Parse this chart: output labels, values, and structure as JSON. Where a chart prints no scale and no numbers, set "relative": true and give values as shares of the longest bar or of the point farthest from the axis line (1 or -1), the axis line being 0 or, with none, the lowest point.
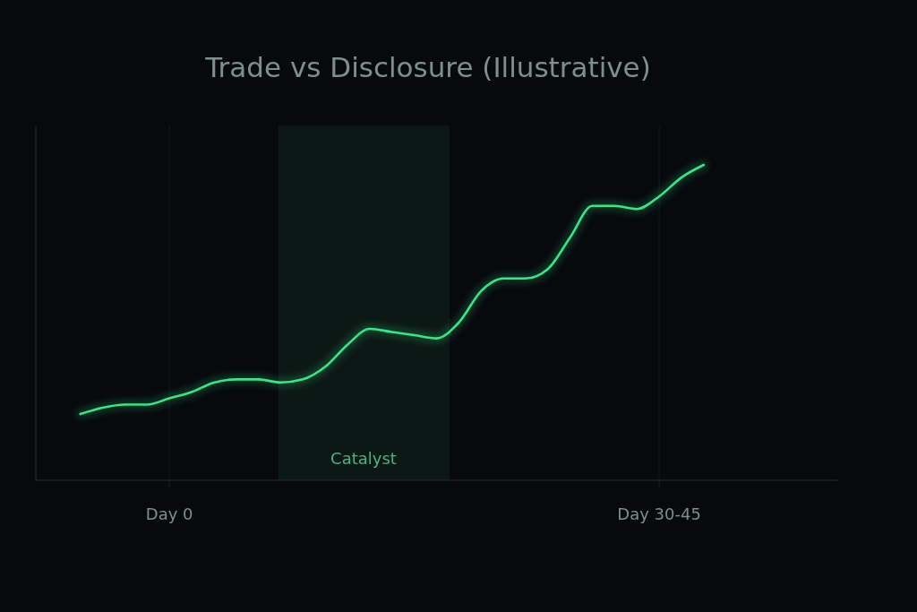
{
  "chart_data": {
    "type": "line",
    "title": "Trade vs Disclosure (Illustrative)",
    "relative": true,
    "categories": [
      null,
      null,
      null,
      null,
      null,
      null,
      "Day 0",
      null,
      null,
      null,
      null,
      null,
      null,
      null,
      null,
      null,
      null,
      null,
      null,
      null,
      null,
      null,
      null,
      null,
      null,
      null,
      null,
      null,
      "Day 30-45",
      null,
      null,
      null,
      null,
      null,
      null,
      null,
      null
    ],
    "grid": "x",
    "marker": "none",
    "line_style": "solid",
    "annotations": [
      "Catalyst"
    ],
    "series": [
      {
        "color": "#33e887",
        "values": [
          null,
          null,
          0.21,
          0.23,
          0.24,
          0.24,
          0.26,
          0.28,
          0.31,
          0.32,
          0.32,
          0.31,
          0.32,
          0.36,
          0.43,
          0.48,
          0.47,
          0.46,
          0.45,
          0.5,
          0.6,
          0.64,
          0.64,
          0.67,
          0.77,
          0.87,
          0.87,
          0.86,
          0.9,
          0.96,
          1,
          null,
          null,
          null,
          null,
          null,
          null
        ]
      }
    ]
  }
}
